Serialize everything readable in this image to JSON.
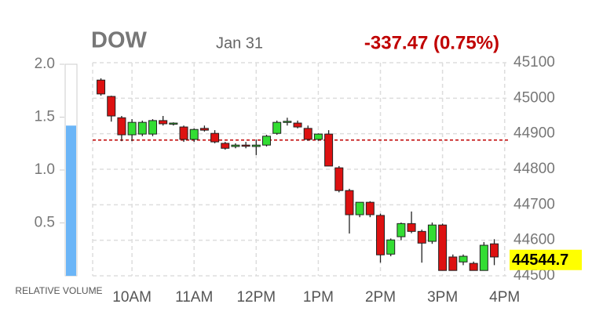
{
  "chart_data": {
    "type": "candlestick",
    "title": "DOW",
    "date": "Jan 31",
    "change": "-337.47 (0.75%)",
    "change_color": "#c00000",
    "last_price": 44544.7,
    "reference_line": 44882.17,
    "reference_color": "#c00000",
    "up_color": "#33dd33",
    "down_color": "#dd1111",
    "grid": true,
    "x": [
      570,
      580,
      590,
      600,
      610,
      620,
      630,
      640,
      650,
      660,
      670,
      680,
      690,
      700,
      710,
      720,
      730,
      740,
      750,
      760,
      770,
      780,
      790,
      800,
      810,
      820,
      830,
      840,
      850,
      860,
      870,
      880,
      890,
      900,
      910,
      920,
      930,
      940,
      950
    ],
    "open": [
      45051,
      45005,
      44945,
      44897,
      44899,
      44899,
      44937,
      44928,
      44919,
      44884,
      44915,
      44901,
      44873,
      44864,
      44868,
      44864,
      44868,
      44901,
      44932,
      44930,
      44915,
      44884,
      44899,
      44804,
      44740,
      44672,
      44707,
      44670,
      44561,
      44610,
      44647,
      44625,
      44597,
      44643,
      44553,
      44539,
      44535,
      44515,
      44590
    ],
    "high": [
      45056,
      45007,
      44950,
      44941,
      44937,
      44941,
      44950,
      44932,
      44923,
      44915,
      44923,
      44910,
      44877,
      44873,
      44877,
      44884,
      44897,
      44937,
      44945,
      44937,
      44923,
      44901,
      44910,
      44809,
      44745,
      44707,
      44710,
      44675,
      44605,
      44650,
      44681,
      44630,
      44650,
      44647,
      44560,
      44560,
      44540,
      44595,
      44603
    ],
    "low": [
      45007,
      44934,
      44879,
      44879,
      44893,
      44893,
      44923,
      44923,
      44877,
      44877,
      44906,
      44873,
      44855,
      44859,
      44859,
      44840,
      44864,
      44897,
      44923,
      44915,
      44880,
      44880,
      44809,
      44735,
      44619,
      44665,
      44665,
      44537,
      44555,
      44600,
      44620,
      44537,
      44590,
      44515,
      44515,
      44530,
      44515,
      44515,
      44530
    ],
    "close": [
      45012,
      44950,
      44897,
      44932,
      44932,
      44937,
      44928,
      44930,
      44884,
      44912,
      44910,
      44877,
      44859,
      44868,
      44866,
      44868,
      44893,
      44932,
      44935,
      44919,
      44884,
      44899,
      44809,
      44740,
      44672,
      44707,
      44672,
      44559,
      44601,
      44647,
      44625,
      44592,
      44643,
      44515,
      44515,
      44555,
      44515,
      44586,
      44553
    ],
    "xlim": [
      562,
      964
    ],
    "xticks": [
      {
        "value": 600,
        "label": "10AM"
      },
      {
        "value": 660,
        "label": "11AM"
      },
      {
        "value": 720,
        "label": "12PM"
      },
      {
        "value": 780,
        "label": "1PM"
      },
      {
        "value": 840,
        "label": "2PM"
      },
      {
        "value": 900,
        "label": "3PM"
      },
      {
        "value": 960,
        "label": "4PM"
      }
    ],
    "ylim": [
      44500,
      45100
    ],
    "yticks": [
      44500,
      44600,
      44700,
      44800,
      44900,
      45000,
      45100
    ],
    "volume_gauge": {
      "label": "RELATIVE VOLUME",
      "value": 1.42,
      "color": "#6bb5f7",
      "ylim": [
        0,
        2
      ],
      "yticks": [
        0.5,
        1.5,
        {
          "value": 1,
          "label": "1.0"
        },
        {
          "value": 2,
          "label": "2.0"
        }
      ]
    }
  }
}
